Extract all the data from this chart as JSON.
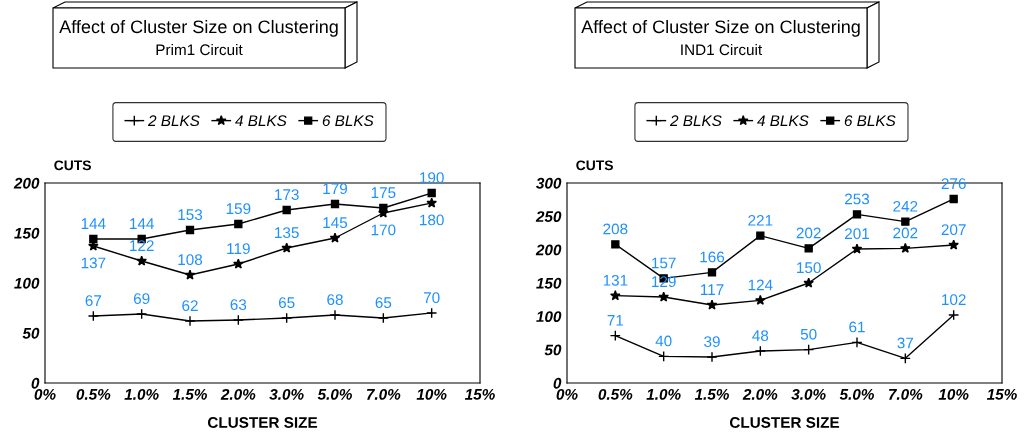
{
  "chart_data": [
    {
      "type": "line",
      "title": "Affect of Cluster Size on Clustering",
      "subtitle": "Prim1 Circuit",
      "xlabel": "CLUSTER SIZE",
      "ylabel": "CUTS",
      "categories": [
        "0%",
        "0.5%",
        "1.0%",
        "1.5%",
        "2.0%",
        "3.0%",
        "5.0%",
        "7.0%",
        "10%",
        "15%"
      ],
      "series": [
        {
          "name": "2 BLKS",
          "color": "#000000",
          "marker": "cross",
          "values": [
            null,
            67,
            69,
            62,
            63,
            65,
            68,
            65,
            70,
            null
          ]
        },
        {
          "name": "4 BLKS",
          "color": "#000000",
          "marker": "star",
          "values": [
            null,
            137,
            122,
            108,
            119,
            135,
            145,
            170,
            180,
            null
          ]
        },
        {
          "name": "6 BLKS",
          "color": "#000000",
          "marker": "square",
          "values": [
            null,
            144,
            144,
            153,
            159,
            173,
            179,
            175,
            190,
            null
          ]
        }
      ],
      "ylim": [
        0,
        200
      ],
      "yticks": [
        0,
        50,
        100,
        150,
        200
      ],
      "grid": false,
      "legend": "top",
      "data_labels": true,
      "line_style": "solid"
    },
    {
      "type": "line",
      "title": "Affect of Cluster Size on Clustering",
      "subtitle": "IND1 Circuit",
      "xlabel": "CLUSTER SIZE",
      "ylabel": "CUTS",
      "categories": [
        "0%",
        "0.5%",
        "1.0%",
        "1.5%",
        "2.0%",
        "3.0%",
        "5.0%",
        "7.0%",
        "10%",
        "15%"
      ],
      "series": [
        {
          "name": "2 BLKS",
          "color": "#000000",
          "marker": "cross",
          "values": [
            null,
            71,
            40,
            39,
            48,
            50,
            61,
            37,
            102,
            null
          ]
        },
        {
          "name": "4 BLKS",
          "color": "#000000",
          "marker": "star",
          "values": [
            null,
            131,
            129,
            117,
            124,
            150,
            201,
            202,
            207,
            null
          ]
        },
        {
          "name": "6 BLKS",
          "color": "#000000",
          "marker": "square",
          "values": [
            null,
            208,
            157,
            166,
            221,
            202,
            253,
            242,
            276,
            null
          ]
        }
      ],
      "ylim": [
        0,
        300
      ],
      "yticks": [
        0,
        50,
        100,
        150,
        200,
        250,
        300
      ],
      "grid": false,
      "legend": "top",
      "data_labels": true,
      "line_style": "solid"
    }
  ]
}
